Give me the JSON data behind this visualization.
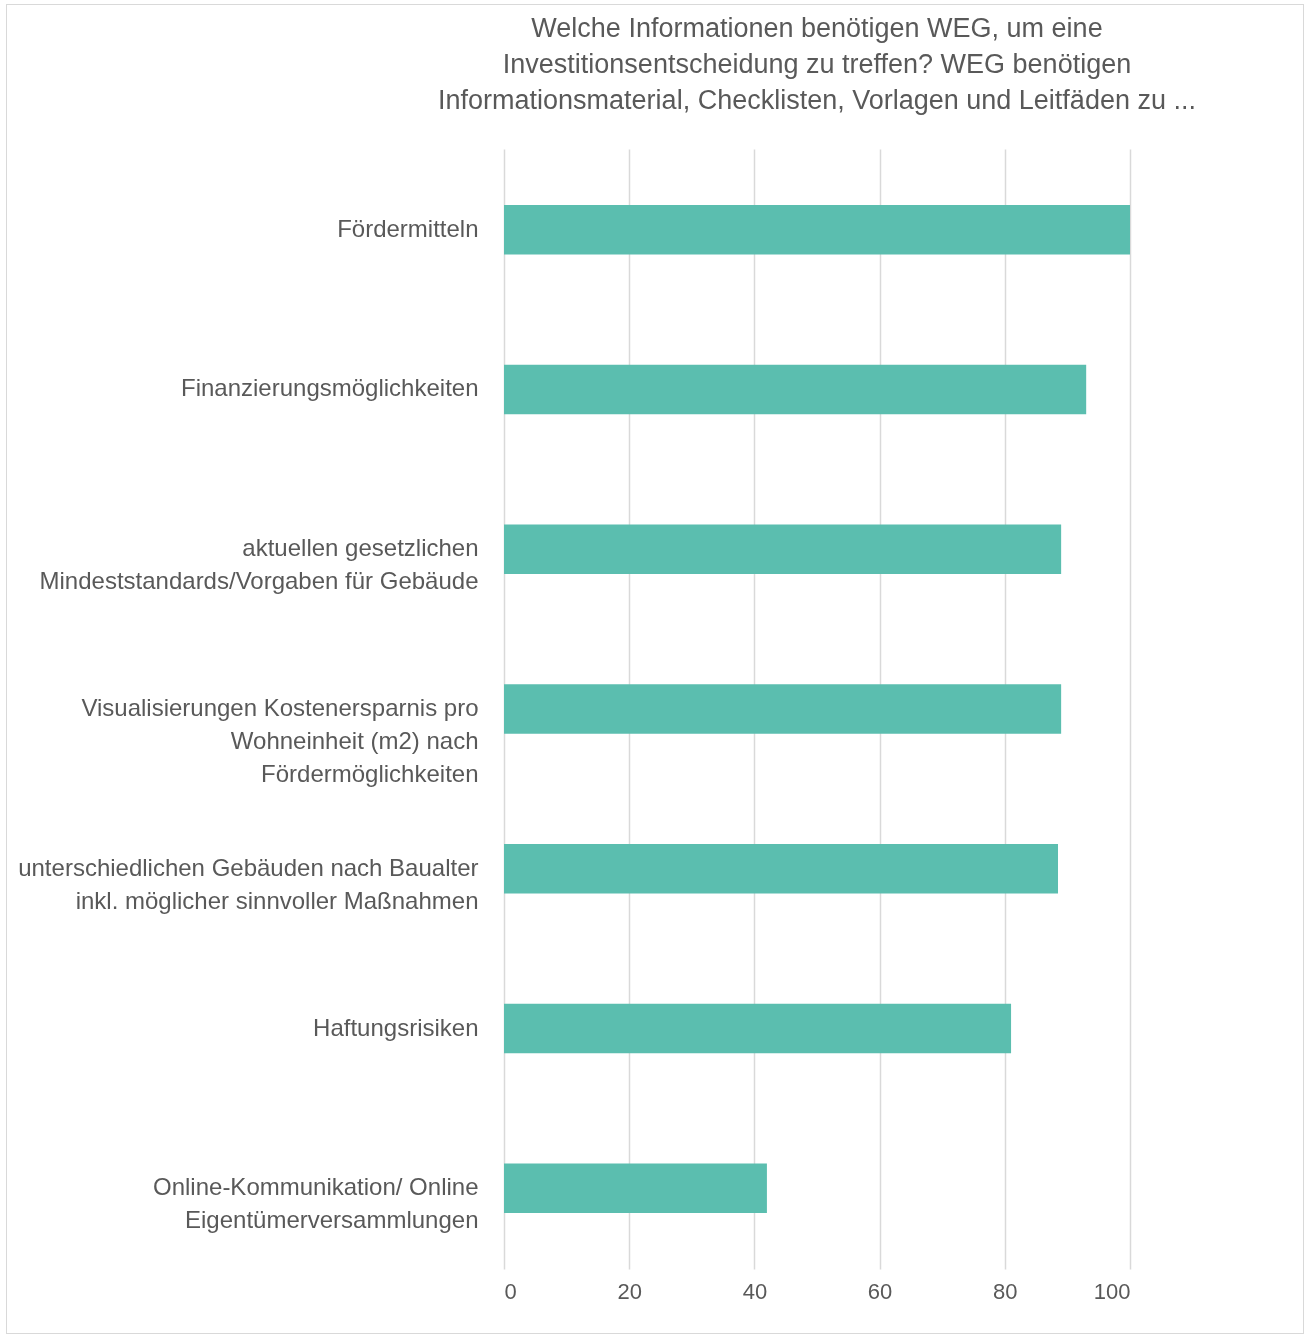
{
  "chart_data": {
    "type": "bar",
    "orientation": "horizontal",
    "title": "Welche Informationen benötigen WEG, um eine Investitionsentscheidung zu treffen? WEG benötigen Informationsmaterial, Checklisten, Vorlagen und Leitfäden zu ...",
    "categories": [
      "Fördermitteln",
      "Finanzierungsmöglichkeiten",
      "aktuellen gesetzlichen Mindeststandards/Vorgaben für Gebäude",
      "Visualisierungen Kostenersparnis pro Wohneinheit (m2) nach Fördermöglichkeiten",
      "unterschiedlichen Gebäuden nach Baualter inkl. möglicher sinnvoller Maßnahmen",
      "Haftungsrisiken",
      "Online-Kommunikation/ Online Eigentümerversammlungen"
    ],
    "values": [
      100,
      93,
      89,
      89,
      88.5,
      81,
      42
    ],
    "color": "#5bbeaf",
    "xlim": [
      0,
      100
    ],
    "xticks": [
      0,
      20,
      40,
      60,
      80,
      100
    ],
    "grid": "x"
  }
}
